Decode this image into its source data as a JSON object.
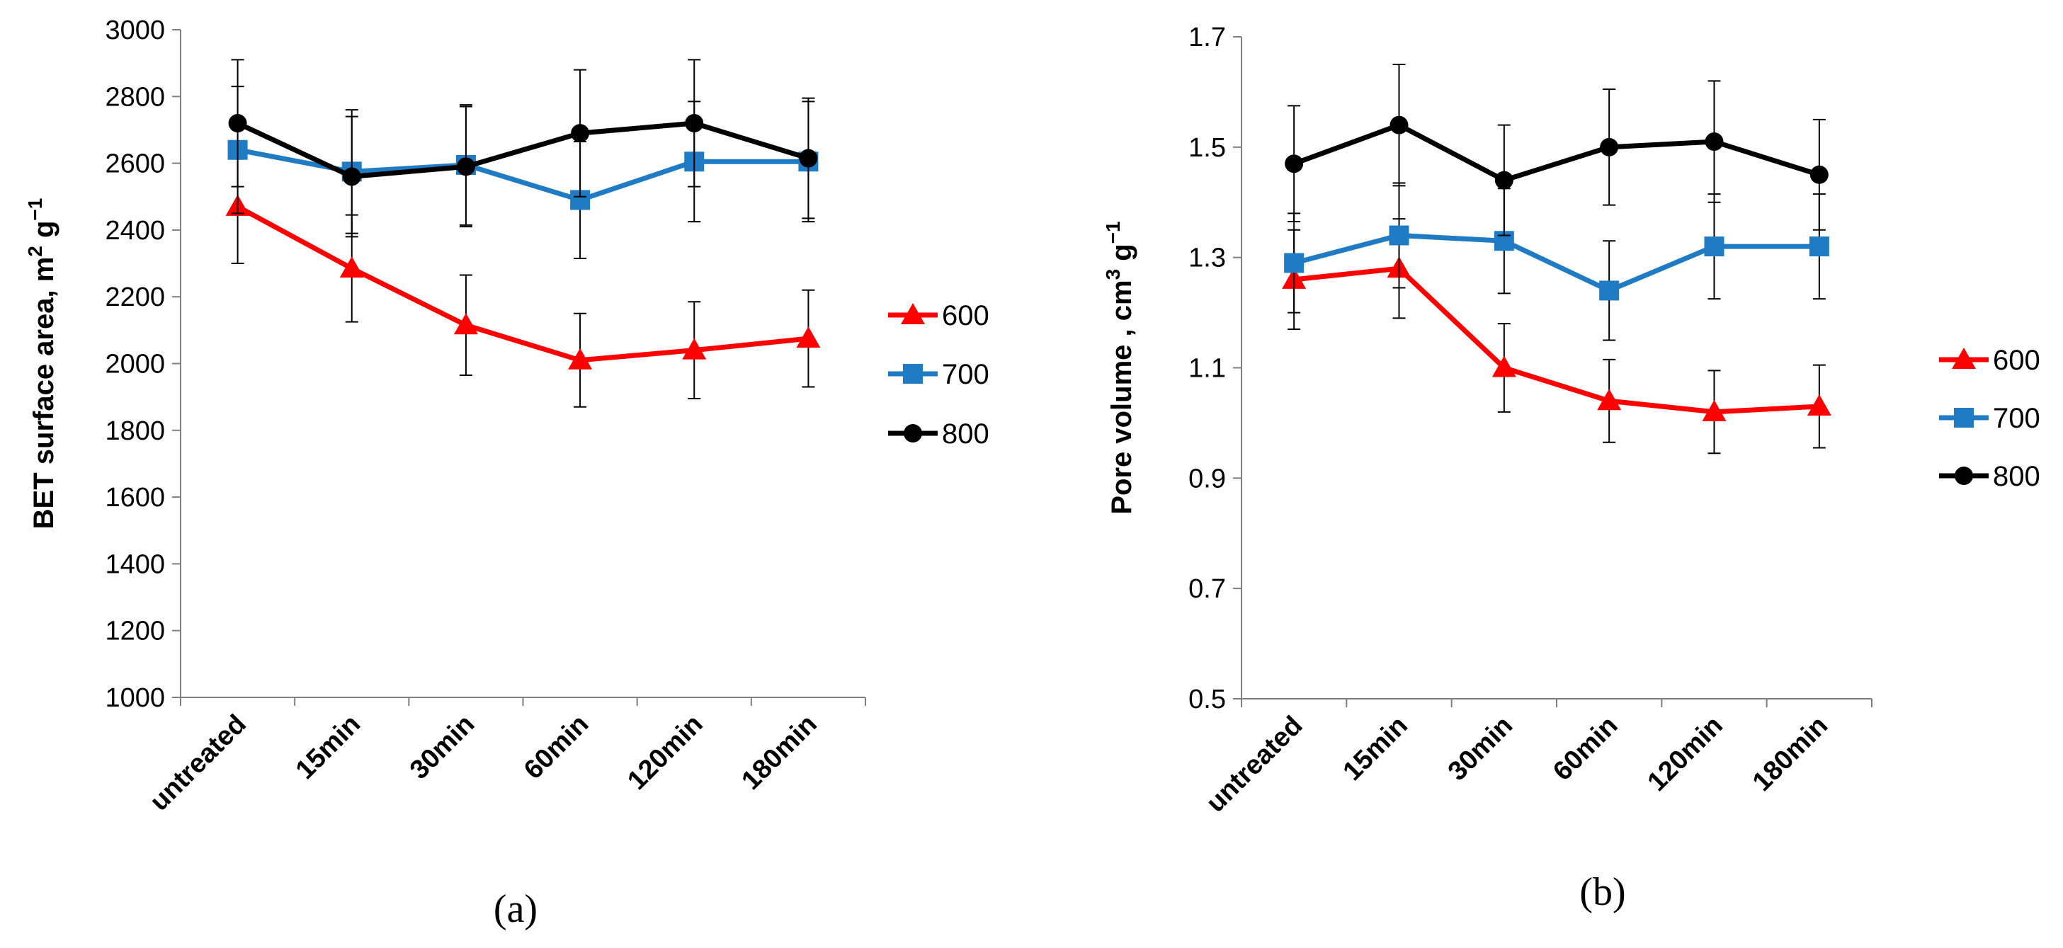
{
  "chart_data": [
    {
      "type": "line",
      "panel_label": "(a)",
      "categories": [
        "untreated",
        "15min",
        "30min",
        "60min",
        "120min",
        "180min"
      ],
      "ylabel_prefix": "BET surface area, m",
      "ylabel_sup1": "2",
      "ylabel_mid": " g",
      "ylabel_sup2": "−1",
      "ylim": [
        1000,
        3000
      ],
      "yticks": [
        1000,
        1200,
        1400,
        1600,
        1800,
        2000,
        2200,
        2400,
        2600,
        2800,
        3000
      ],
      "ytick_labels": [
        "1000",
        "1200",
        "1400",
        "1600",
        "1800",
        "2000",
        "2200",
        "2400",
        "2600",
        "2800",
        "3000"
      ],
      "series": [
        {
          "name": "600",
          "color": "#ff0000",
          "marker": "triangle",
          "values": [
            2470,
            2285,
            2115,
            2010,
            2040,
            2075
          ],
          "errors": [
            170,
            160,
            150,
            140,
            145,
            145
          ]
        },
        {
          "name": "700",
          "color": "#1f7bc4",
          "marker": "square",
          "values": [
            2640,
            2575,
            2595,
            2490,
            2605,
            2605
          ],
          "errors": [
            190,
            185,
            180,
            175,
            180,
            180
          ]
        },
        {
          "name": "800",
          "color": "#000000",
          "marker": "circle",
          "values": [
            2720,
            2560,
            2590,
            2690,
            2720,
            2615
          ],
          "errors": [
            190,
            180,
            180,
            190,
            190,
            180
          ]
        }
      ]
    },
    {
      "type": "line",
      "panel_label": "(b)",
      "categories": [
        "untreated",
        "15min",
        "30min",
        "60min",
        "120min",
        "180min"
      ],
      "ylabel_prefix": "Pore volume , cm",
      "ylabel_sup1": "3",
      "ylabel_mid": " g",
      "ylabel_sup2": "−1",
      "ylim": [
        0.5,
        1.7
      ],
      "yticks": [
        0.5,
        0.7,
        0.9,
        1.1,
        1.3,
        1.5,
        1.7
      ],
      "ytick_labels": [
        "0.5",
        "0.7",
        "0.9",
        "1.1",
        "1.3",
        "1.5",
        "1.7"
      ],
      "series": [
        {
          "name": "600",
          "color": "#ff0000",
          "marker": "triangle",
          "values": [
            1.26,
            1.28,
            1.1,
            1.04,
            1.02,
            1.03
          ],
          "errors": [
            0.09,
            0.09,
            0.08,
            0.075,
            0.075,
            0.075
          ]
        },
        {
          "name": "700",
          "color": "#1f7bc4",
          "marker": "square",
          "values": [
            1.29,
            1.34,
            1.33,
            1.24,
            1.32,
            1.32
          ],
          "errors": [
            0.09,
            0.095,
            0.095,
            0.09,
            0.095,
            0.095
          ]
        },
        {
          "name": "800",
          "color": "#000000",
          "marker": "circle",
          "values": [
            1.47,
            1.54,
            1.44,
            1.5,
            1.51,
            1.45
          ],
          "errors": [
            0.105,
            0.11,
            0.1,
            0.105,
            0.11,
            0.1
          ]
        }
      ]
    }
  ]
}
